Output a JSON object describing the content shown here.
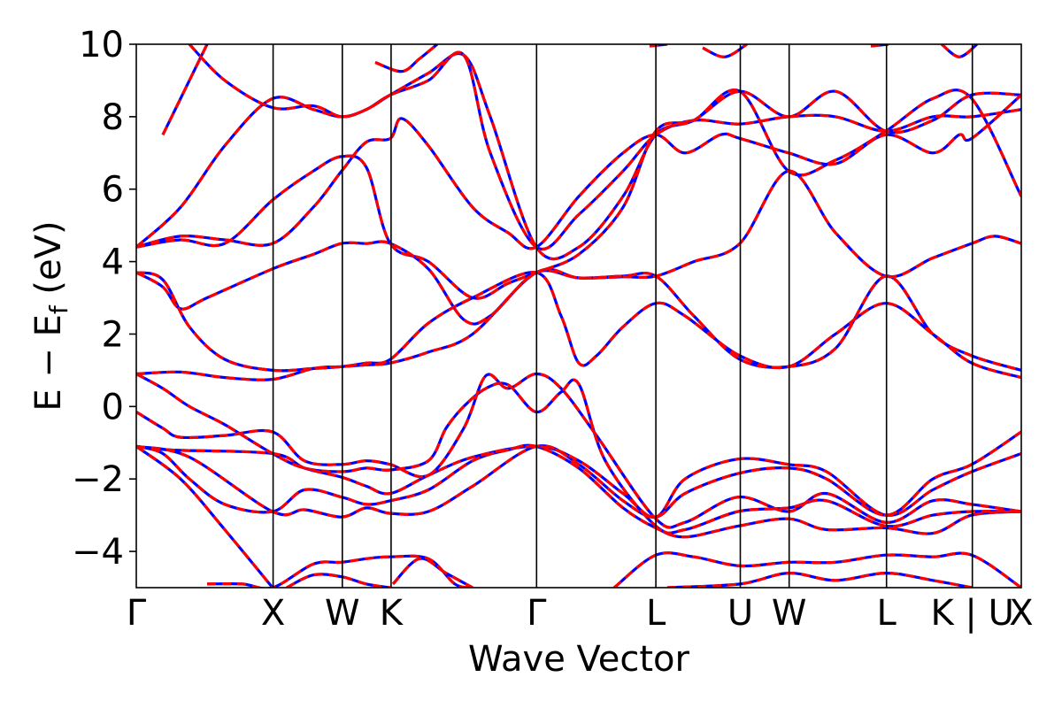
{
  "chart_data": {
    "type": "line",
    "title": "",
    "xlabel": "Wave Vector",
    "ylabel_parts": {
      "main": "E − E",
      "sub": "f",
      "unit": " (eV)"
    },
    "ylim": [
      -5,
      10
    ],
    "yticks": [
      {
        "value": -4,
        "label": "−4"
      },
      {
        "value": -2,
        "label": "−2"
      },
      {
        "value": 0,
        "label": "0"
      },
      {
        "value": 2,
        "label": "2"
      },
      {
        "value": 4,
        "label": "4"
      },
      {
        "value": 6,
        "label": "6"
      },
      {
        "value": 8,
        "label": "8"
      },
      {
        "value": 10,
        "label": "10"
      }
    ],
    "xlim": [
      0,
      1
    ],
    "high_symmetry_points": [
      {
        "pos": 0.0,
        "label": "Γ"
      },
      {
        "pos": 0.1546,
        "label": "X"
      },
      {
        "pos": 0.2328,
        "label": "W"
      },
      {
        "pos": 0.2879,
        "label": "K"
      },
      {
        "pos": 0.4523,
        "label": "Γ"
      },
      {
        "pos": 0.5871,
        "label": "L"
      },
      {
        "pos": 0.6825,
        "label": "U"
      },
      {
        "pos": 0.7377,
        "label": "W"
      },
      {
        "pos": 0.8477,
        "label": "L"
      },
      {
        "pos": 0.9447,
        "label": "K | U"
      },
      {
        "pos": 1.0,
        "label": "X"
      }
    ],
    "styles": [
      {
        "color": "#0000ff",
        "width": 3.2,
        "dash": ""
      },
      {
        "color": "#ff0000",
        "width": 3.2,
        "dash": "10 7"
      }
    ],
    "bands": [
      [
        [
          0,
          -1.1
        ],
        [
          0.06,
          -1.4
        ],
        [
          0.154,
          -2.9
        ],
        [
          0.19,
          -2.85
        ],
        [
          0.232,
          -3.05
        ],
        [
          0.26,
          -2.8
        ],
        [
          0.287,
          -2.95
        ],
        [
          0.33,
          -2.9
        ],
        [
          0.38,
          -2.2
        ],
        [
          0.452,
          -1.1
        ],
        [
          0.5,
          -1.6
        ],
        [
          0.55,
          -2.6
        ],
        [
          0.587,
          -3.05
        ],
        [
          0.62,
          -2.4
        ],
        [
          0.68,
          -1.85
        ],
        [
          0.737,
          -1.7
        ],
        [
          0.78,
          -2.0
        ],
        [
          0.847,
          -3.0
        ],
        [
          0.9,
          -2.0
        ],
        [
          0.944,
          -1.6
        ],
        [
          1.0,
          -0.7
        ]
      ],
      [
        [
          0,
          -1.1
        ],
        [
          0.04,
          -1.2
        ],
        [
          0.154,
          -1.3
        ],
        [
          0.19,
          -1.7
        ],
        [
          0.232,
          -1.95
        ],
        [
          0.26,
          -2.2
        ],
        [
          0.287,
          -2.4
        ],
        [
          0.33,
          -1.9
        ],
        [
          0.38,
          -1.4
        ],
        [
          0.452,
          -1.1
        ],
        [
          0.5,
          -1.5
        ],
        [
          0.55,
          -2.4
        ],
        [
          0.587,
          -3.05
        ],
        [
          0.62,
          -2.0
        ],
        [
          0.68,
          -1.45
        ],
        [
          0.737,
          -1.6
        ],
        [
          0.78,
          -1.8
        ],
        [
          0.847,
          -3.0
        ],
        [
          0.9,
          -2.3
        ],
        [
          0.944,
          -1.8
        ],
        [
          1.0,
          -1.3
        ]
      ],
      [
        [
          0,
          -0.15
        ],
        [
          0.03,
          -0.6
        ],
        [
          0.05,
          -0.85
        ],
        [
          0.1,
          -0.8
        ],
        [
          0.154,
          -0.7
        ],
        [
          0.19,
          -1.5
        ],
        [
          0.232,
          -1.6
        ],
        [
          0.26,
          -1.5
        ],
        [
          0.287,
          -1.6
        ],
        [
          0.33,
          -1.9
        ],
        [
          0.37,
          -0.6
        ],
        [
          0.395,
          0.85
        ],
        [
          0.42,
          0.5
        ],
        [
          0.452,
          0.9
        ],
        [
          0.48,
          0.5
        ],
        [
          0.52,
          -0.8
        ],
        [
          0.587,
          -3.1
        ],
        [
          0.62,
          -3.2
        ],
        [
          0.68,
          -2.5
        ],
        [
          0.737,
          -2.9
        ],
        [
          0.78,
          -2.4
        ],
        [
          0.847,
          -3.2
        ],
        [
          0.9,
          -2.6
        ],
        [
          0.944,
          -2.7
        ],
        [
          1.0,
          -2.9
        ]
      ],
      [
        [
          0,
          0.9
        ],
        [
          0.03,
          0.5
        ],
        [
          0.06,
          0.0
        ],
        [
          0.1,
          -0.5
        ],
        [
          0.154,
          -1.3
        ],
        [
          0.19,
          -1.7
        ],
        [
          0.232,
          -1.8
        ],
        [
          0.26,
          -1.7
        ],
        [
          0.287,
          -1.75
        ],
        [
          0.33,
          -1.5
        ],
        [
          0.35,
          -0.6
        ],
        [
          0.37,
          0.0
        ],
        [
          0.395,
          0.5
        ],
        [
          0.42,
          0.6
        ],
        [
          0.452,
          -0.15
        ],
        [
          0.48,
          0.4
        ],
        [
          0.5,
          0.62
        ],
        [
          0.53,
          -1.5
        ],
        [
          0.587,
          -3.3
        ],
        [
          0.62,
          -3.4
        ],
        [
          0.68,
          -2.9
        ],
        [
          0.737,
          -2.8
        ],
        [
          0.78,
          -2.6
        ],
        [
          0.847,
          -3.3
        ],
        [
          0.9,
          -3.0
        ],
        [
          0.944,
          -2.9
        ],
        [
          1.0,
          -2.9
        ]
      ],
      [
        [
          0,
          -1.1
        ],
        [
          0.03,
          -1.3
        ],
        [
          0.06,
          -2.0
        ],
        [
          0.1,
          -2.7
        ],
        [
          0.154,
          -2.9
        ],
        [
          0.19,
          -2.3
        ],
        [
          0.232,
          -2.5
        ],
        [
          0.26,
          -2.7
        ],
        [
          0.287,
          -2.6
        ],
        [
          0.33,
          -2.3
        ],
        [
          0.38,
          -1.5
        ],
        [
          0.42,
          -1.2
        ],
        [
          0.452,
          -1.1
        ],
        [
          0.5,
          -1.7
        ],
        [
          0.55,
          -2.8
        ],
        [
          0.587,
          -3.35
        ],
        [
          0.62,
          -3.6
        ],
        [
          0.68,
          -3.3
        ],
        [
          0.737,
          -3.1
        ],
        [
          0.78,
          -3.4
        ],
        [
          0.847,
          -3.35
        ],
        [
          0.9,
          -3.5
        ],
        [
          0.944,
          -3.0
        ],
        [
          1.0,
          -2.9
        ]
      ],
      [
        [
          0,
          3.7
        ],
        [
          0.03,
          3.3
        ],
        [
          0.05,
          2.7
        ],
        [
          0.08,
          3.0
        ],
        [
          0.154,
          3.8
        ],
        [
          0.2,
          4.2
        ],
        [
          0.232,
          4.5
        ],
        [
          0.26,
          4.5
        ],
        [
          0.287,
          4.5
        ],
        [
          0.33,
          3.8
        ],
        [
          0.37,
          2.4
        ],
        [
          0.4,
          2.5
        ],
        [
          0.452,
          3.7
        ],
        [
          0.5,
          3.55
        ],
        [
          0.55,
          3.58
        ],
        [
          0.587,
          3.6
        ],
        [
          0.63,
          4.0
        ],
        [
          0.682,
          4.5
        ],
        [
          0.737,
          6.5
        ],
        [
          0.79,
          4.8
        ],
        [
          0.847,
          3.6
        ],
        [
          0.9,
          4.1
        ],
        [
          0.944,
          4.5
        ],
        [
          0.97,
          4.7
        ],
        [
          1.0,
          4.5
        ]
      ],
      [
        [
          0,
          3.7
        ],
        [
          0.03,
          3.5
        ],
        [
          0.06,
          2.2
        ],
        [
          0.1,
          1.3
        ],
        [
          0.154,
          1.0
        ],
        [
          0.2,
          1.05
        ],
        [
          0.232,
          1.1
        ],
        [
          0.26,
          1.2
        ],
        [
          0.287,
          1.3
        ],
        [
          0.33,
          2.3
        ],
        [
          0.38,
          3.0
        ],
        [
          0.452,
          3.7
        ],
        [
          0.48,
          2.5
        ],
        [
          0.5,
          1.2
        ],
        [
          0.52,
          1.4
        ],
        [
          0.55,
          2.2
        ],
        [
          0.587,
          2.85
        ],
        [
          0.62,
          2.5
        ],
        [
          0.682,
          1.4
        ],
        [
          0.737,
          1.1
        ],
        [
          0.79,
          2.0
        ],
        [
          0.847,
          2.85
        ],
        [
          0.9,
          2.0
        ],
        [
          0.944,
          1.2
        ],
        [
          1.0,
          0.8
        ]
      ],
      [
        [
          0,
          0.9
        ],
        [
          0.05,
          0.95
        ],
        [
          0.1,
          0.8
        ],
        [
          0.154,
          0.75
        ],
        [
          0.2,
          1.05
        ],
        [
          0.232,
          1.1
        ],
        [
          0.26,
          1.15
        ],
        [
          0.287,
          1.2
        ],
        [
          0.33,
          1.5
        ],
        [
          0.38,
          2.0
        ],
        [
          0.452,
          3.7
        ],
        [
          0.5,
          3.55
        ],
        [
          0.55,
          3.6
        ],
        [
          0.587,
          3.6
        ],
        [
          0.63,
          2.5
        ],
        [
          0.682,
          1.3
        ],
        [
          0.737,
          1.1
        ],
        [
          0.79,
          1.6
        ],
        [
          0.847,
          3.6
        ],
        [
          0.9,
          2.0
        ],
        [
          0.944,
          1.4
        ],
        [
          1.0,
          1.0
        ]
      ],
      [
        [
          0,
          4.4
        ],
        [
          0.05,
          4.7
        ],
        [
          0.1,
          4.6
        ],
        [
          0.154,
          4.5
        ],
        [
          0.2,
          5.5
        ],
        [
          0.232,
          6.5
        ],
        [
          0.26,
          7.3
        ],
        [
          0.287,
          7.4
        ],
        [
          0.3,
          7.95
        ],
        [
          0.33,
          7.2
        ],
        [
          0.38,
          5.5
        ],
        [
          0.42,
          4.8
        ],
        [
          0.452,
          4.4
        ],
        [
          0.5,
          5.8
        ],
        [
          0.55,
          7.0
        ],
        [
          0.587,
          7.5
        ],
        [
          0.62,
          7.0
        ],
        [
          0.66,
          7.5
        ],
        [
          0.682,
          7.4
        ],
        [
          0.737,
          7.0
        ],
        [
          0.79,
          6.7
        ],
        [
          0.847,
          7.5
        ],
        [
          0.9,
          7.0
        ],
        [
          0.93,
          7.5
        ],
        [
          0.944,
          7.4
        ],
        [
          1.0,
          8.6
        ]
      ],
      [
        [
          0,
          4.4
        ],
        [
          0.05,
          5.5
        ],
        [
          0.1,
          7.2
        ],
        [
          0.154,
          8.5
        ],
        [
          0.2,
          8.2
        ],
        [
          0.232,
          8.0
        ],
        [
          0.26,
          8.2
        ],
        [
          0.287,
          8.6
        ],
        [
          0.33,
          9.0
        ],
        [
          0.37,
          9.7
        ],
        [
          0.4,
          7.0
        ],
        [
          0.452,
          4.4
        ],
        [
          0.5,
          5.3
        ],
        [
          0.55,
          6.5
        ],
        [
          0.587,
          7.5
        ],
        [
          0.63,
          7.9
        ],
        [
          0.682,
          7.8
        ],
        [
          0.737,
          8.0
        ],
        [
          0.79,
          8.0
        ],
        [
          0.847,
          7.6
        ],
        [
          0.9,
          8.0
        ],
        [
          0.944,
          8.0
        ],
        [
          1.0,
          8.2
        ]
      ],
      [
        [
          0,
          4.4
        ],
        [
          0.05,
          4.6
        ],
        [
          0.1,
          4.5
        ],
        [
          0.154,
          5.7
        ],
        [
          0.2,
          6.5
        ],
        [
          0.232,
          6.9
        ],
        [
          0.26,
          6.6
        ],
        [
          0.287,
          4.5
        ],
        [
          0.33,
          4.0
        ],
        [
          0.38,
          3.0
        ],
        [
          0.42,
          3.4
        ],
        [
          0.452,
          3.7
        ],
        [
          0.5,
          4.2
        ],
        [
          0.55,
          5.5
        ],
        [
          0.587,
          7.6
        ],
        [
          0.63,
          7.9
        ],
        [
          0.682,
          8.7
        ],
        [
          0.737,
          6.5
        ],
        [
          0.79,
          6.8
        ],
        [
          0.847,
          7.6
        ],
        [
          0.9,
          8.5
        ],
        [
          0.944,
          8.5
        ],
        [
          1.0,
          5.8
        ]
      ],
      [
        [
          0.06,
          10.0
        ],
        [
          0.1,
          9.0
        ],
        [
          0.154,
          8.25
        ],
        [
          0.2,
          8.3
        ],
        [
          0.232,
          8.0
        ],
        [
          0.26,
          8.2
        ],
        [
          0.287,
          8.6
        ],
        [
          0.33,
          9.2
        ],
        [
          0.37,
          9.7
        ],
        [
          0.4,
          8.0
        ],
        [
          0.452,
          4.4
        ],
        [
          0.5,
          4.4
        ],
        [
          0.55,
          5.8
        ],
        [
          0.587,
          7.5
        ],
        [
          0.63,
          7.9
        ],
        [
          0.682,
          8.7
        ],
        [
          0.737,
          8.0
        ],
        [
          0.79,
          8.7
        ],
        [
          0.847,
          7.6
        ],
        [
          0.9,
          7.9
        ],
        [
          0.944,
          8.6
        ],
        [
          1.0,
          8.6
        ]
      ],
      [
        [
          0.03,
          7.5
        ],
        [
          0.06,
          9.0
        ],
        [
          0.08,
          10.0
        ]
      ],
      [
        [
          0.27,
          9.5
        ],
        [
          0.3,
          9.25
        ],
        [
          0.32,
          9.6
        ],
        [
          0.34,
          10.0
        ]
      ],
      [
        [
          0.58,
          9.95
        ],
        [
          0.6,
          10.0
        ]
      ],
      [
        [
          0.64,
          9.9
        ],
        [
          0.665,
          9.65
        ],
        [
          0.69,
          10.0
        ]
      ],
      [
        [
          0.83,
          9.95
        ],
        [
          0.85,
          10.0
        ]
      ],
      [
        [
          0.91,
          10.0
        ],
        [
          0.93,
          9.65
        ],
        [
          0.95,
          10.0
        ]
      ],
      [
        [
          0.08,
          -4.9
        ],
        [
          0.12,
          -4.9
        ],
        [
          0.154,
          -5.0
        ],
        [
          0.2,
          -4.35
        ],
        [
          0.232,
          -4.3
        ],
        [
          0.26,
          -4.2
        ],
        [
          0.287,
          -4.15
        ],
        [
          0.33,
          -4.2
        ],
        [
          0.36,
          -4.9
        ],
        [
          0.38,
          -5.0
        ]
      ],
      [
        [
          0.17,
          -5.0
        ],
        [
          0.2,
          -4.65
        ],
        [
          0.232,
          -4.7
        ],
        [
          0.26,
          -4.9
        ],
        [
          0.287,
          -5.0
        ]
      ],
      [
        [
          0.54,
          -5.0
        ],
        [
          0.587,
          -4.1
        ],
        [
          0.63,
          -4.15
        ],
        [
          0.682,
          -4.4
        ],
        [
          0.737,
          -4.3
        ],
        [
          0.79,
          -4.3
        ],
        [
          0.847,
          -4.1
        ],
        [
          0.9,
          -4.15
        ],
        [
          0.944,
          -4.1
        ],
        [
          1.0,
          -5.0
        ]
      ],
      [
        [
          0.6,
          -5.0
        ],
        [
          0.682,
          -4.9
        ],
        [
          0.737,
          -4.6
        ],
        [
          0.79,
          -4.8
        ],
        [
          0.847,
          -4.6
        ],
        [
          0.9,
          -4.8
        ],
        [
          0.944,
          -5.0
        ]
      ],
      [
        [
          0.0,
          -1.1
        ],
        [
          0.05,
          -2.0
        ],
        [
          0.1,
          -3.4
        ],
        [
          0.154,
          -5.0
        ]
      ],
      [
        [
          0.29,
          -4.9
        ],
        [
          0.32,
          -4.2
        ],
        [
          0.35,
          -4.6
        ],
        [
          0.38,
          -5.0
        ]
      ]
    ]
  }
}
